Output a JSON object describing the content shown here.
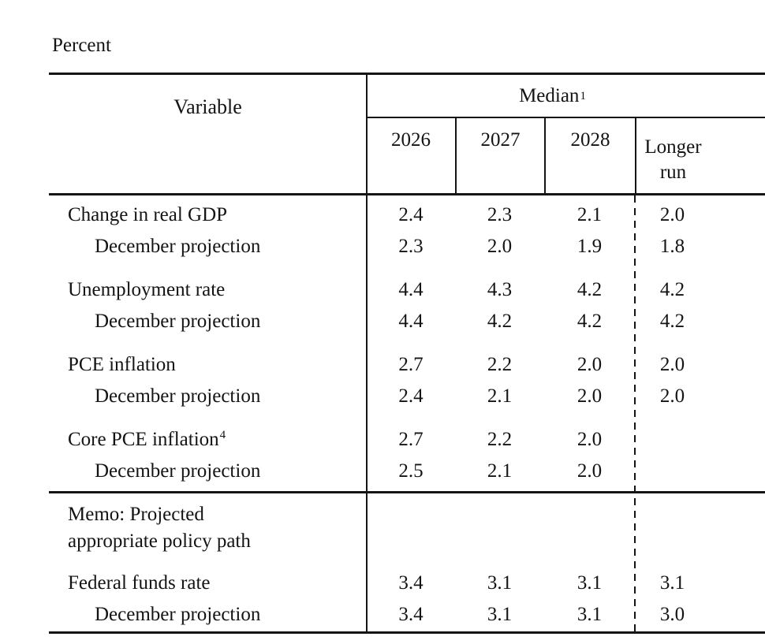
{
  "page": {
    "unit_label": "Percent"
  },
  "table": {
    "headers": {
      "variable": "Variable",
      "median": "Median",
      "median_sup": "1",
      "years": [
        "2026",
        "2027",
        "2028"
      ],
      "longer_run_line1": "Longer",
      "longer_run_line2": "run"
    },
    "rows": [
      {
        "label": "Change in real GDP",
        "values": [
          "2.4",
          "2.3",
          "2.1",
          "2.0"
        ]
      },
      {
        "label": "December projection",
        "values": [
          "2.3",
          "2.0",
          "1.9",
          "1.8"
        ]
      },
      {
        "label": "Unemployment rate",
        "values": [
          "4.4",
          "4.3",
          "4.2",
          "4.2"
        ]
      },
      {
        "label": "December projection",
        "values": [
          "4.4",
          "4.2",
          "4.2",
          "4.2"
        ]
      },
      {
        "label": "PCE inflation",
        "values": [
          "2.7",
          "2.2",
          "2.0",
          "2.0"
        ]
      },
      {
        "label": "December projection",
        "values": [
          "2.4",
          "2.1",
          "2.0",
          "2.0"
        ]
      },
      {
        "label": "Core PCE inflation",
        "label_sup": "4",
        "values": [
          "2.7",
          "2.2",
          "2.0",
          ""
        ]
      },
      {
        "label": "December projection",
        "values": [
          "2.5",
          "2.1",
          "2.0",
          ""
        ]
      },
      {
        "label": "Federal funds rate",
        "values": [
          "3.4",
          "3.1",
          "3.1",
          "3.1"
        ]
      },
      {
        "label": "December projection",
        "values": [
          "3.4",
          "3.1",
          "3.1",
          "3.0"
        ]
      }
    ],
    "memo": {
      "line1": "Memo: Projected",
      "line2": "appropriate policy path"
    }
  }
}
